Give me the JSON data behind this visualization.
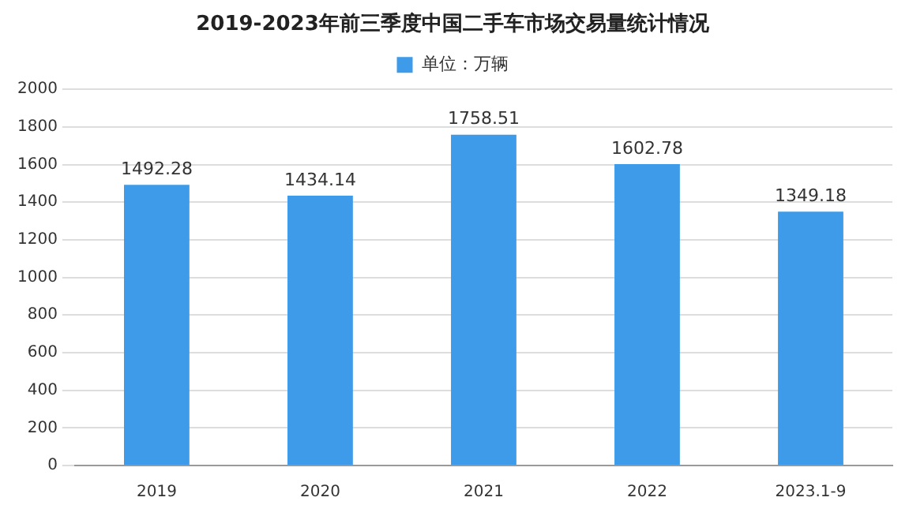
{
  "chart_data": {
    "type": "bar",
    "title": "2019-2023年前三季度中国二手车市场交易量统计情况",
    "categories": [
      "2019",
      "2020",
      "2021",
      "2022",
      "2023.1-9"
    ],
    "series": [
      {
        "name": "单位：万辆",
        "color": "#3d9be9",
        "values": [
          1492.28,
          1434.14,
          1758.51,
          1602.78,
          1349.18
        ]
      }
    ],
    "ylim": [
      0,
      2000
    ],
    "yticks": [
      0,
      200,
      400,
      600,
      800,
      1000,
      1200,
      1400,
      1600,
      1800,
      2000
    ],
    "grid": "y",
    "legend": "top",
    "data_labels": true
  }
}
